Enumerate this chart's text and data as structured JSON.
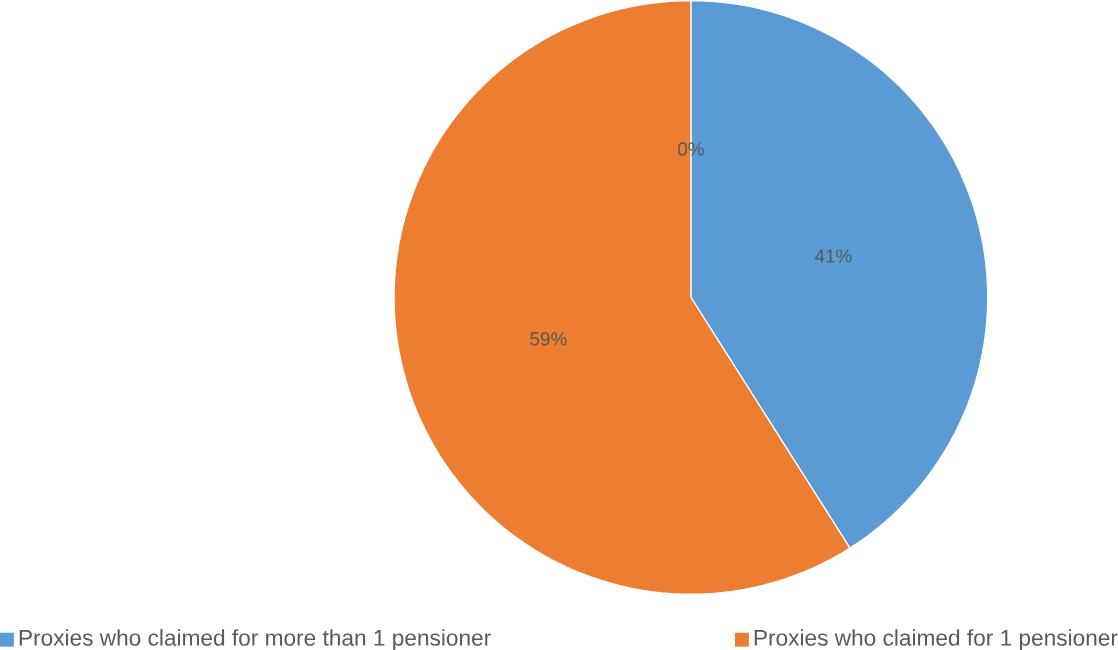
{
  "chart_data": {
    "type": "pie",
    "categories": [
      "Proxies who claimed for more than 1 pensioner",
      "Proxies who claimed for 1 pensioner",
      null
    ],
    "values": [
      41,
      59,
      0
    ],
    "colors": [
      "#5b9bd5",
      "#ed7d31",
      "#a5a5a5"
    ],
    "value_labels": [
      "41%",
      "59%",
      "0%"
    ],
    "legend": "bottom"
  }
}
